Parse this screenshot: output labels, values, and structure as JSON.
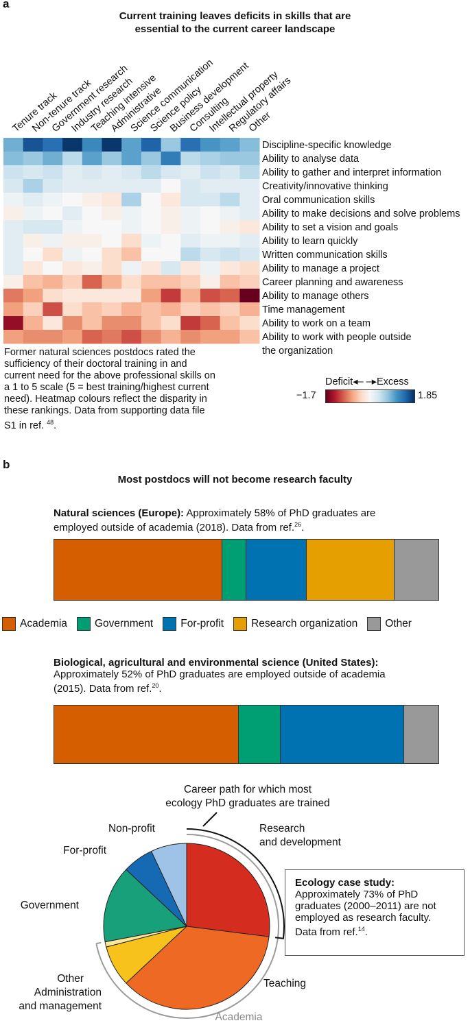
{
  "panel_a": {
    "label": "a",
    "title_line1": "Current training leaves deficits in skills that are",
    "title_line2": "essential to the current career landscape",
    "caption_lines": [
      "Former natural sciences postdocs rated the",
      "sufficiency of their doctoral training in and",
      "current need for the above professional skills on",
      "a 1 to 5 scale (5 = best training/highest current",
      "need). Heatmap colours reflect the disparity in",
      "these rankings. Data from supporting data file"
    ],
    "caption_last": "S1 in ref.",
    "caption_ref": "48",
    "caption_end": ".",
    "colorbar": {
      "deficit_label": "Deficit",
      "excess_label": "Excess",
      "min_label": "−1.7",
      "max_label": "1.85",
      "colors": [
        "#67001f",
        "#b2182b",
        "#d6604d",
        "#f4a582",
        "#fddbc7",
        "#f7f7f7",
        "#d1e5f0",
        "#92c5de",
        "#4393c3",
        "#2166ac",
        "#053061"
      ]
    }
  },
  "chart_data": [
    {
      "type": "heatmap",
      "title": "Current training leaves deficits in skills that are essential to the current career landscape",
      "columns": [
        "Tenure track",
        "Non-tenure track",
        "Government research",
        "Industry research",
        "Teaching intensive",
        "Administrative",
        "Science communication",
        "Science policy",
        "Business development",
        "Consulting",
        "Intellectual property",
        "Regulatory affairs",
        "Other"
      ],
      "rows": [
        "Discipline-specific knowledge",
        "Ability to analyse data",
        "Ability to gather and interpret information",
        "Creativity/innovative thinking",
        "Oral communication skills",
        "Ability to make decisions and solve problems",
        "Ability to set a vision and goals",
        "Ability to learn quickly",
        "Written communication skills",
        "Ability to manage a project",
        "Career planning and awareness",
        "Ability to manage others",
        "Time management",
        "Ability to work on a team",
        "Ability to work with people outside the organization"
      ],
      "row_display": [
        [
          "Discipline-specific knowledge"
        ],
        [
          "Ability to analyse data"
        ],
        [
          "Ability to gather and interpret information"
        ],
        [
          "Creativity/innovative thinking"
        ],
        [
          "Oral communication skills"
        ],
        [
          "Ability to make decisions and solve problems"
        ],
        [
          "Ability to set a vision and goals"
        ],
        [
          "Ability to learn quickly"
        ],
        [
          "Written communication skills"
        ],
        [
          "Ability to manage a project"
        ],
        [
          "Career planning and awareness"
        ],
        [
          "Ability to manage others"
        ],
        [
          "Time management"
        ],
        [
          "Ability to work on a team"
        ],
        [
          "Ability to work with people outside",
          "the organization"
        ]
      ],
      "color_range": [
        -1.7,
        1.85
      ],
      "values": [
        [
          0.9,
          1.6,
          1.4,
          1.8,
          1.2,
          1.8,
          1.0,
          1.5,
          0.7,
          1.4,
          1.1,
          1.0,
          0.8
        ],
        [
          0.8,
          0.7,
          0.9,
          0.5,
          1.0,
          0.7,
          1.0,
          0.7,
          1.3,
          0.5,
          0.6,
          0.7,
          0.7
        ],
        [
          0.4,
          0.3,
          0.4,
          0.2,
          0.3,
          0.2,
          0.3,
          0.5,
          0.3,
          0.2,
          0.4,
          0.3,
          0.5
        ],
        [
          0.3,
          0.6,
          0.3,
          0.2,
          0.2,
          0.2,
          0.2,
          0.2,
          0.0,
          0.3,
          0.2,
          0.2,
          0.2
        ],
        [
          0.1,
          0.2,
          0.1,
          0.0,
          -0.1,
          -0.2,
          0.6,
          0.0,
          -0.2,
          0.3,
          0.3,
          0.5,
          0.2
        ],
        [
          -0.1,
          0.1,
          0.0,
          0.2,
          0.0,
          -0.1,
          0.1,
          0.0,
          -0.1,
          0.1,
          0.0,
          0.1,
          0.2
        ],
        [
          0.2,
          0.3,
          0.3,
          0.1,
          0.0,
          0.0,
          0.1,
          0.0,
          -0.1,
          0.1,
          0.0,
          -0.1,
          -0.2
        ],
        [
          0.2,
          -0.1,
          0.1,
          -0.1,
          -0.1,
          0.0,
          -0.3,
          0.1,
          0.0,
          0.2,
          0.1,
          0.1,
          0.2
        ],
        [
          0.2,
          0.0,
          -0.3,
          0.1,
          0.0,
          -0.3,
          -0.5,
          0.0,
          0.0,
          0.5,
          0.3,
          0.4,
          0.3
        ],
        [
          0.2,
          -0.2,
          0.0,
          -0.2,
          -0.1,
          -0.3,
          0.1,
          -0.2,
          0.3,
          -0.2,
          0.1,
          -0.2,
          -0.3
        ],
        [
          -0.1,
          -0.5,
          -0.6,
          -0.4,
          -1.0,
          -0.6,
          -0.3,
          -0.5,
          -0.5,
          -0.4,
          -0.1,
          -0.5,
          -0.4
        ],
        [
          -0.9,
          -0.7,
          -0.3,
          -0.2,
          -0.2,
          -0.2,
          -0.2,
          -0.7,
          -1.2,
          -0.6,
          -1.1,
          -1.0,
          -1.7
        ],
        [
          -0.7,
          -0.4,
          -1.1,
          -0.3,
          -0.5,
          -0.4,
          -0.6,
          -0.5,
          -0.6,
          -0.4,
          -0.5,
          -0.4,
          -0.6
        ],
        [
          -1.5,
          -0.6,
          -0.2,
          -0.8,
          -0.5,
          -0.8,
          -0.8,
          -0.5,
          -0.3,
          -1.2,
          -1.0,
          -0.5,
          -0.3
        ],
        [
          -0.7,
          -0.8,
          -0.8,
          -0.7,
          -1.0,
          -0.9,
          -1.1,
          -0.8,
          -0.6,
          -0.8,
          -0.7,
          -0.7,
          -0.5
        ]
      ]
    },
    {
      "type": "bar",
      "subtype": "stacked-100",
      "title_bold": "Natural sciences (Europe):",
      "title_rest": " Approximately 58% of PhD graduates are employed outside of academia (2018). Data from ref.",
      "title_lines": [
        "Approximately 58% of PhD graduates are",
        "employed outside of academia (2018). Data from ref."
      ],
      "ref": "26",
      "ref_end": ".",
      "series": [
        {
          "name": "Academia",
          "value": 42
        },
        {
          "name": "Government",
          "value": 6
        },
        {
          "name": "For-profit",
          "value": 15
        },
        {
          "name": "Research organization",
          "value": 22
        },
        {
          "name": "Other",
          "value": 11
        }
      ]
    },
    {
      "type": "bar",
      "subtype": "stacked-100",
      "title_bold": "Biological, agricultural and environmental science (United States):",
      "title_lines": [
        "Approximately 52% of PhD graduates are employed outside of academia",
        "(2015). Data from ref."
      ],
      "ref": "20",
      "ref_end": ".",
      "series": [
        {
          "name": "Academia",
          "value": 48
        },
        {
          "name": "Government",
          "value": 11
        },
        {
          "name": "For-profit",
          "value": 32
        },
        {
          "name": "Other",
          "value": 9
        }
      ]
    },
    {
      "type": "pie",
      "slices": [
        {
          "name": "Research and development",
          "label_lines": [
            "Research",
            "and development"
          ],
          "value": 27
        },
        {
          "name": "Teaching",
          "label_lines": [
            "Teaching"
          ],
          "value": 36
        },
        {
          "name": "Administration and management",
          "label_lines": [
            "Administration",
            "and management"
          ],
          "value": 8
        },
        {
          "name": "Other",
          "label_lines": [
            "Other"
          ],
          "value": 1
        },
        {
          "name": "Government",
          "label_lines": [
            "Government"
          ],
          "value": 15
        },
        {
          "name": "For-profit",
          "label_lines": [
            "For-profit"
          ],
          "value": 6
        },
        {
          "name": "Non-profit",
          "label_lines": [
            "Non-profit"
          ],
          "value": 7
        }
      ],
      "bracket_outer_label_lines": [
        "Career path for which most",
        "ecology PhD graduates are trained"
      ],
      "bracket_inner_label": "Academia"
    }
  ],
  "panel_b": {
    "label": "b",
    "title": "Most postdocs will not become research faculty",
    "legend": [
      {
        "name": "Academia",
        "color": "#d55e00"
      },
      {
        "name": "Government",
        "color": "#009e73"
      },
      {
        "name": "For-profit",
        "color": "#0072b2"
      },
      {
        "name": "Research organization",
        "color": "#e69f00"
      },
      {
        "name": "Other",
        "color": "#999999"
      }
    ],
    "bar_colors": {
      "Academia": "#d55e00",
      "Government": "#009e73",
      "For-profit": "#0072b2",
      "Research organization": "#e69f00",
      "Other": "#999999"
    },
    "pie_colors": {
      "Research and development": "#d42c1f",
      "Teaching": "#ee6a24",
      "Administration and management": "#f8c21c",
      "Other": "#fde89a",
      "Government": "#17a07a",
      "For-profit": "#1669b3",
      "Non-profit": "#9fc3e6"
    },
    "case_study": {
      "title": "Ecology case study:",
      "lines": [
        "Approximately 73% of PhD",
        "graduates (2000–2011) are not",
        "employed as research faculty."
      ],
      "last": "Data from ref.",
      "ref": "14",
      "end": "."
    }
  }
}
